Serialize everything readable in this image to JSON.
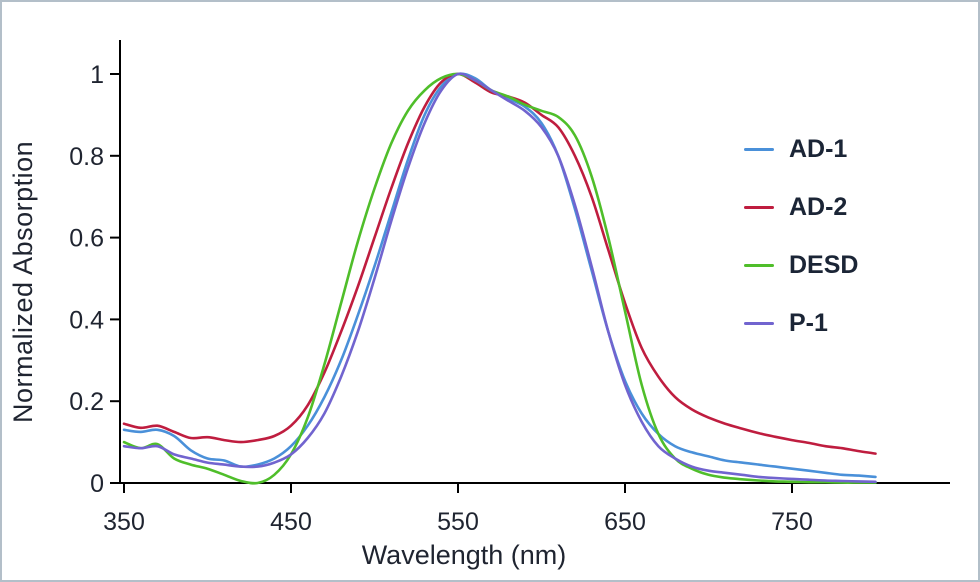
{
  "chart_data": {
    "type": "line",
    "xlabel": "Wavelength (nm)",
    "ylabel": "Normalized Absorption",
    "xlim": [
      350,
      800
    ],
    "ylim": [
      0,
      1
    ],
    "x_ticks": [
      350,
      450,
      550,
      650,
      750
    ],
    "y_ticks": [
      0,
      0.2,
      0.4,
      0.6,
      0.8,
      1
    ],
    "grid": false,
    "legend_position": "right-inside",
    "axis_color": "#000000",
    "text_color": "#1f2430",
    "x": [
      350,
      360,
      370,
      380,
      390,
      400,
      410,
      420,
      430,
      440,
      450,
      460,
      470,
      480,
      490,
      500,
      510,
      520,
      530,
      540,
      550,
      560,
      570,
      580,
      590,
      600,
      610,
      620,
      630,
      640,
      650,
      660,
      670,
      680,
      690,
      700,
      710,
      720,
      730,
      740,
      750,
      760,
      770,
      780,
      790,
      800
    ],
    "series": [
      {
        "name": "AD-1",
        "color": "#4a90d9",
        "values": [
          0.13,
          0.125,
          0.13,
          0.115,
          0.08,
          0.06,
          0.055,
          0.04,
          0.045,
          0.06,
          0.09,
          0.14,
          0.21,
          0.3,
          0.41,
          0.53,
          0.66,
          0.79,
          0.9,
          0.97,
          1.0,
          0.99,
          0.96,
          0.94,
          0.92,
          0.88,
          0.8,
          0.67,
          0.52,
          0.37,
          0.25,
          0.17,
          0.12,
          0.09,
          0.075,
          0.065,
          0.055,
          0.05,
          0.045,
          0.04,
          0.035,
          0.03,
          0.025,
          0.02,
          0.018,
          0.015
        ]
      },
      {
        "name": "AD-2",
        "color": "#bf1d3f",
        "values": [
          0.145,
          0.135,
          0.14,
          0.125,
          0.11,
          0.112,
          0.105,
          0.1,
          0.105,
          0.115,
          0.14,
          0.19,
          0.27,
          0.37,
          0.48,
          0.6,
          0.72,
          0.83,
          0.92,
          0.98,
          1.0,
          0.98,
          0.955,
          0.945,
          0.93,
          0.9,
          0.87,
          0.8,
          0.7,
          0.57,
          0.44,
          0.33,
          0.26,
          0.21,
          0.18,
          0.16,
          0.145,
          0.133,
          0.122,
          0.113,
          0.105,
          0.098,
          0.09,
          0.085,
          0.078,
          0.072
        ]
      },
      {
        "name": "DESD",
        "color": "#4fbe2a",
        "values": [
          0.1,
          0.085,
          0.095,
          0.06,
          0.045,
          0.035,
          0.02,
          0.005,
          0.0,
          0.02,
          0.07,
          0.16,
          0.29,
          0.44,
          0.59,
          0.72,
          0.83,
          0.91,
          0.96,
          0.99,
          1.0,
          0.985,
          0.96,
          0.945,
          0.925,
          0.91,
          0.895,
          0.85,
          0.75,
          0.6,
          0.42,
          0.24,
          0.12,
          0.06,
          0.035,
          0.02,
          0.013,
          0.009,
          0.006,
          0.004,
          0.003,
          0.002,
          0.002,
          0.001,
          0.001,
          0.001
        ]
      },
      {
        "name": "P-1",
        "color": "#7164cf",
        "values": [
          0.09,
          0.085,
          0.09,
          0.07,
          0.06,
          0.05,
          0.045,
          0.04,
          0.04,
          0.05,
          0.07,
          0.11,
          0.17,
          0.26,
          0.37,
          0.5,
          0.64,
          0.77,
          0.88,
          0.96,
          1.0,
          0.985,
          0.96,
          0.935,
          0.91,
          0.87,
          0.8,
          0.68,
          0.53,
          0.37,
          0.24,
          0.15,
          0.09,
          0.06,
          0.04,
          0.03,
          0.025,
          0.02,
          0.015,
          0.012,
          0.01,
          0.008,
          0.006,
          0.005,
          0.004,
          0.003
        ]
      }
    ]
  }
}
